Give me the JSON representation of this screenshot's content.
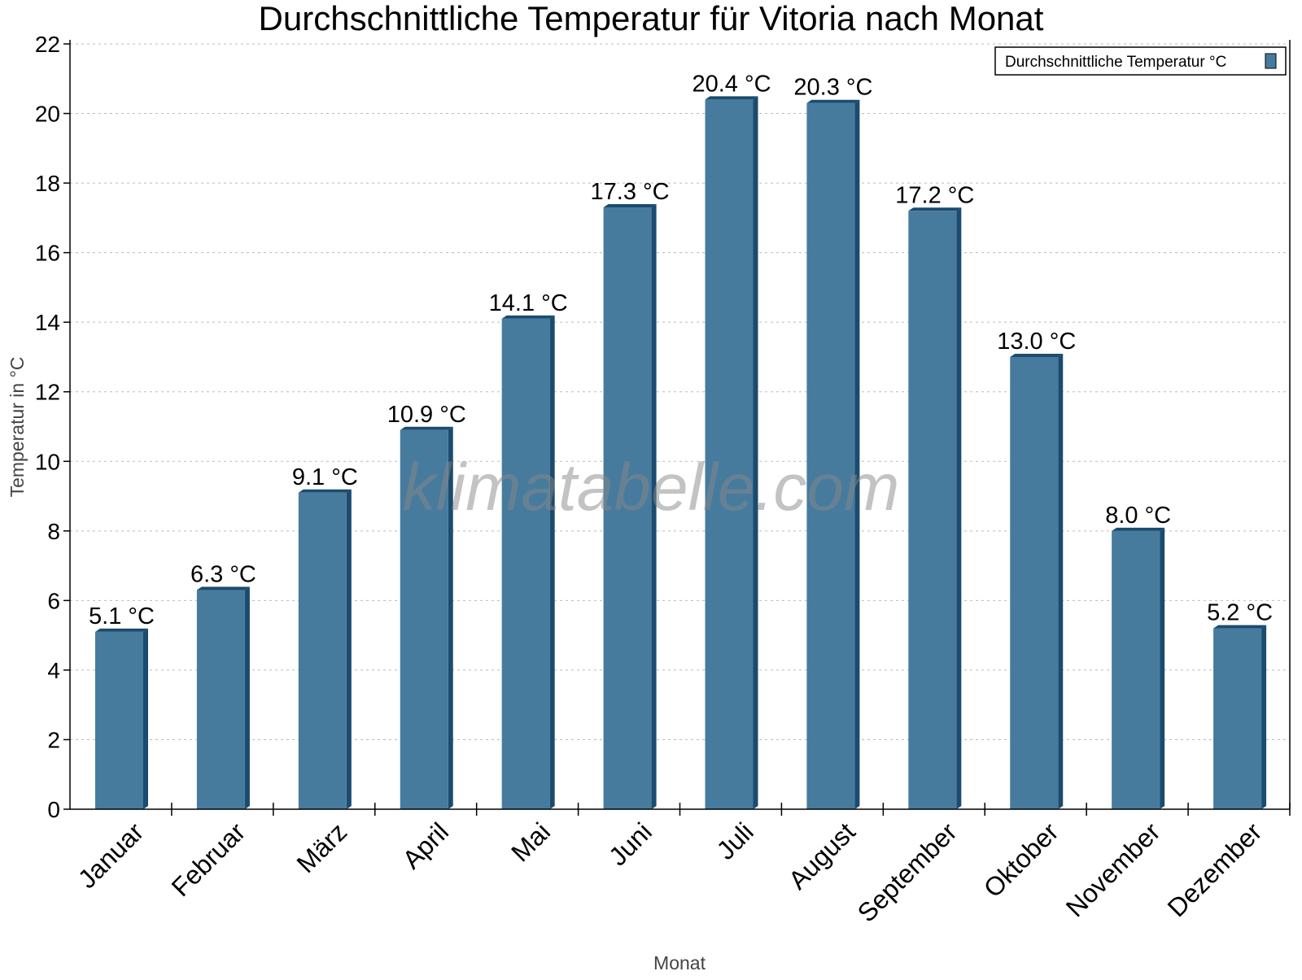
{
  "chart_data": {
    "type": "bar",
    "title": "Durchschnittliche Temperatur für Vitoria nach Monat",
    "xlabel": "Monat",
    "ylabel": "Temperatur in °C",
    "categories": [
      "Januar",
      "Februar",
      "März",
      "April",
      "Mai",
      "Juni",
      "Juli",
      "August",
      "September",
      "Oktober",
      "November",
      "Dezember"
    ],
    "series": [
      {
        "name": "Durchschnittliche Temperatur °C",
        "values": [
          5.1,
          6.3,
          9.1,
          10.9,
          14.1,
          17.3,
          20.4,
          20.3,
          17.2,
          13.0,
          8.0,
          5.2
        ]
      }
    ],
    "data_labels": [
      "5.1 °C",
      "6.3 °C",
      "9.1 °C",
      "10.9 °C",
      "14.1 °C",
      "17.3 °C",
      "20.4 °C",
      "20.3 °C",
      "17.2 °C",
      "13.0 °C",
      "8.0 °C",
      "5.2 °C"
    ],
    "ylim": [
      0,
      22
    ],
    "yticks": [
      0,
      2,
      4,
      6,
      8,
      10,
      12,
      14,
      16,
      18,
      20,
      22
    ],
    "grid": true,
    "legend_position": "top-right",
    "colors": {
      "bar": "#467b9e",
      "bar_side": "#1b4b6e"
    },
    "watermark": "klimatabelle.com"
  }
}
